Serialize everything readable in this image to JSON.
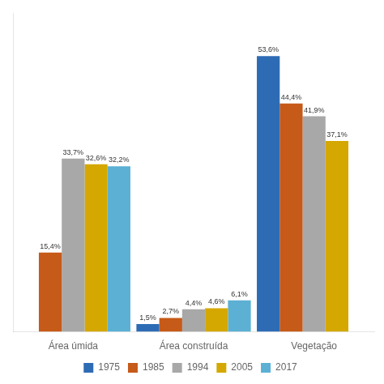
{
  "chart_data": {
    "type": "bar",
    "categories": [
      "Área úmida",
      "Área construída",
      "Vegetação"
    ],
    "series": [
      {
        "name": "1975",
        "color": "#2E6BB5",
        "values": [
          null,
          1.5,
          53.6
        ],
        "value_labels": [
          null,
          "1,5%",
          "53,6%"
        ]
      },
      {
        "name": "1985",
        "color": "#C65A18",
        "values": [
          15.4,
          2.7,
          44.4
        ],
        "value_labels": [
          "15,4%",
          "2,7%",
          "44,4%"
        ]
      },
      {
        "name": "1994",
        "color": "#A8A8A8",
        "values": [
          33.7,
          4.4,
          41.9
        ],
        "value_labels": [
          "33,7%",
          "4,4%",
          "41,9%"
        ]
      },
      {
        "name": "2005",
        "color": "#D4A800",
        "values": [
          32.6,
          4.6,
          37.1
        ],
        "value_labels": [
          "32,6%",
          "4,6%",
          "37,1%"
        ]
      },
      {
        "name": "2017",
        "color": "#5BB0D4",
        "values": [
          32.2,
          6.1,
          null
        ],
        "value_labels": [
          "32,2%",
          "6,1%",
          null
        ]
      }
    ],
    "ylim": [
      0,
      62
    ],
    "grid": false,
    "legend": "bottom",
    "data_labels": true,
    "tick_labels": "x"
  }
}
